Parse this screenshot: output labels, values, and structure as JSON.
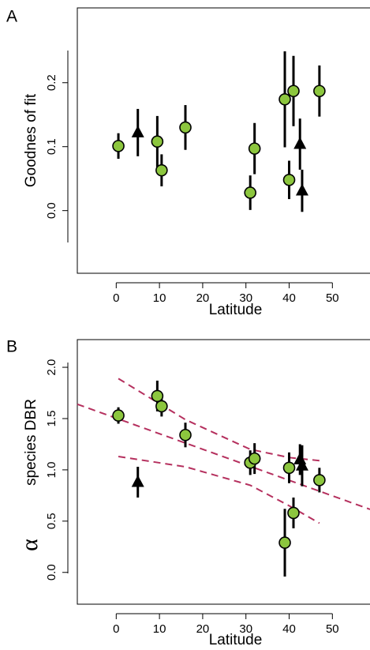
{
  "chart_data": [
    {
      "type": "scatter",
      "panel_label": "A",
      "xlabel": "Latitude",
      "ylabel": "Goodnes of fit",
      "xlim": [
        -9,
        58.7
      ],
      "ylim": [
        -0.098,
        0.317
      ],
      "xticks": [
        0,
        10,
        20,
        30,
        40,
        50
      ],
      "yticks": [
        {
          "value": 0,
          "label": "0.0"
        },
        {
          "value": 0.1,
          "label": "0.1"
        },
        {
          "value": 0.2,
          "label": "0.2"
        }
      ],
      "series": [
        {
          "marker": "circle",
          "color": "#8cc63e",
          "x": [
            0.5,
            9.5,
            10.5,
            16,
            31,
            32,
            39,
            40,
            41,
            47
          ],
          "values": [
            0.101,
            0.108,
            0.063,
            0.13,
            0.028,
            0.097,
            0.174,
            0.048,
            0.187,
            0.187
          ],
          "errors": [
            0.02,
            0.04,
            0.025,
            0.035,
            0.027,
            0.04,
            0.075,
            0.03,
            0.055,
            0.04
          ]
        },
        {
          "marker": "triangle",
          "color": "#000000",
          "x": [
            5,
            42.5,
            43
          ],
          "values": [
            0.122,
            0.104,
            0.031
          ],
          "errors": [
            0.037,
            0.04,
            0.033
          ]
        }
      ]
    },
    {
      "type": "scatter",
      "panel_label": "B",
      "xlabel": "Latitude",
      "ylabel_symbol": "α",
      "ylabel": "species DBR",
      "xlim": [
        -9,
        58.7
      ],
      "ylim": [
        -0.31,
        2.27
      ],
      "xticks": [
        0,
        10,
        20,
        30,
        40,
        50
      ],
      "yticks": [
        {
          "value": 0,
          "label": "0.0"
        },
        {
          "value": 0.5,
          "label": "0.5"
        },
        {
          "value": 1,
          "label": "1.0"
        },
        {
          "value": 1.5,
          "label": "1.5"
        },
        {
          "value": 2,
          "label": "2.0"
        }
      ],
      "series": [
        {
          "marker": "circle",
          "color": "#8cc63e",
          "x": [
            0.5,
            9.5,
            10.5,
            16,
            31,
            32,
            39,
            40,
            41,
            47
          ],
          "values": [
            1.53,
            1.72,
            1.62,
            1.34,
            1.07,
            1.11,
            0.29,
            1.02,
            0.58,
            0.9
          ],
          "errors": [
            0.08,
            0.15,
            0.1,
            0.12,
            0.12,
            0.15,
            0.33,
            0.15,
            0.15,
            0.12
          ]
        },
        {
          "marker": "triangle",
          "color": "#000000",
          "x": [
            5,
            42.5,
            43
          ],
          "values": [
            0.88,
            1.1,
            1.04
          ],
          "errors": [
            0.15,
            0.15,
            0.2
          ]
        }
      ],
      "fits": [
        {
          "color": "#b5305e",
          "x": [
            -9,
            58.7
          ],
          "values": [
            1.64,
            0.615
          ]
        },
        {
          "color": "#b5305e",
          "x": [
            0.5,
            16,
            31,
            40,
            47
          ],
          "values": [
            1.89,
            1.49,
            1.2,
            1.12,
            1.09
          ]
        },
        {
          "color": "#b5305e",
          "x": [
            0.5,
            16,
            31,
            40,
            47
          ],
          "values": [
            1.13,
            1.03,
            0.85,
            0.65,
            0.48
          ]
        }
      ]
    }
  ]
}
